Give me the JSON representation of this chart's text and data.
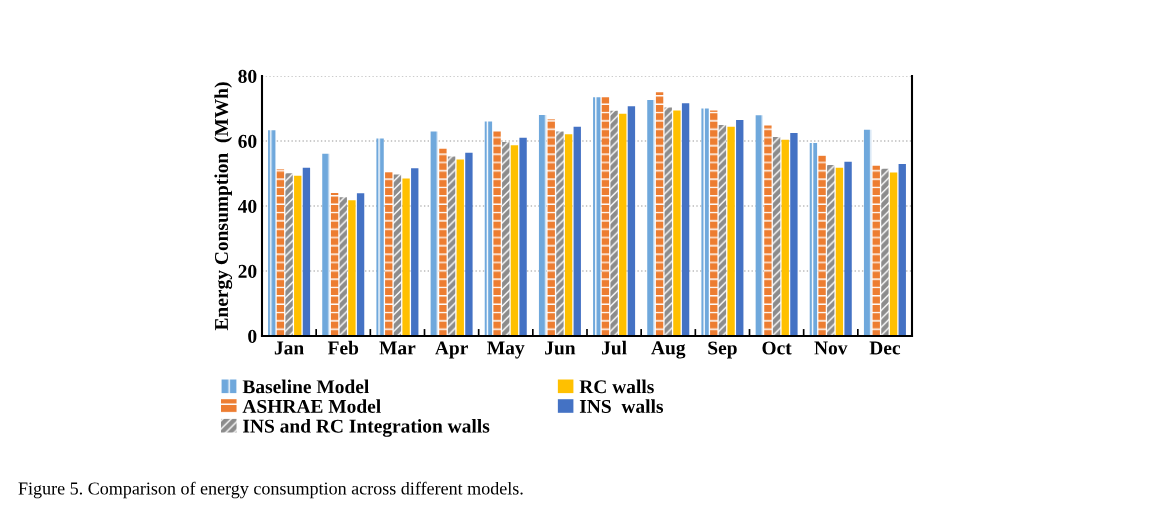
{
  "chart_data": {
    "type": "bar",
    "ylabel": "Energy Consumption  (MWh)",
    "categories": [
      "Jan",
      "Feb",
      "Mar",
      "Apr",
      "May",
      "Jun",
      "Jul",
      "Aug",
      "Sep",
      "Oct",
      "Nov",
      "Dec"
    ],
    "series": [
      {
        "name": "Baseline Model",
        "color": "#6fa8dc",
        "values": [
          63.3,
          56.1,
          60.8,
          62.9,
          66.0,
          68.0,
          73.5,
          72.6,
          70.0,
          67.9,
          59.4,
          63.5
        ]
      },
      {
        "name": "ASHRAE Model",
        "color": "#ed7d31",
        "values": [
          51.3,
          44.0,
          50.4,
          57.6,
          62.9,
          66.7,
          73.5,
          75.0,
          69.4,
          64.8,
          55.5,
          52.4
        ]
      },
      {
        "name": "INS and RC Integration walls",
        "color": "#8c8c8c",
        "values": [
          50.1,
          42.7,
          49.7,
          55.2,
          59.7,
          62.9,
          69.3,
          70.3,
          64.9,
          61.2,
          52.6,
          51.5
        ]
      },
      {
        "name": "RC walls",
        "color": "#ffc000",
        "values": [
          49.3,
          41.8,
          48.5,
          54.3,
          58.7,
          62.1,
          68.4,
          69.4,
          64.4,
          60.4,
          51.8,
          50.3
        ]
      },
      {
        "name": "INS  walls",
        "color": "#4472c4",
        "values": [
          51.8,
          43.9,
          51.6,
          56.4,
          61.0,
          64.4,
          70.7,
          71.6,
          66.5,
          62.5,
          53.6,
          52.9
        ]
      }
    ],
    "ylim": [
      0,
      80
    ],
    "yticks": [
      0,
      20,
      40,
      60,
      80
    ],
    "grid": "y",
    "legend": "bottom",
    "annotations": [
      "Figure 5. Comparison of energy consumption across different models."
    ]
  }
}
